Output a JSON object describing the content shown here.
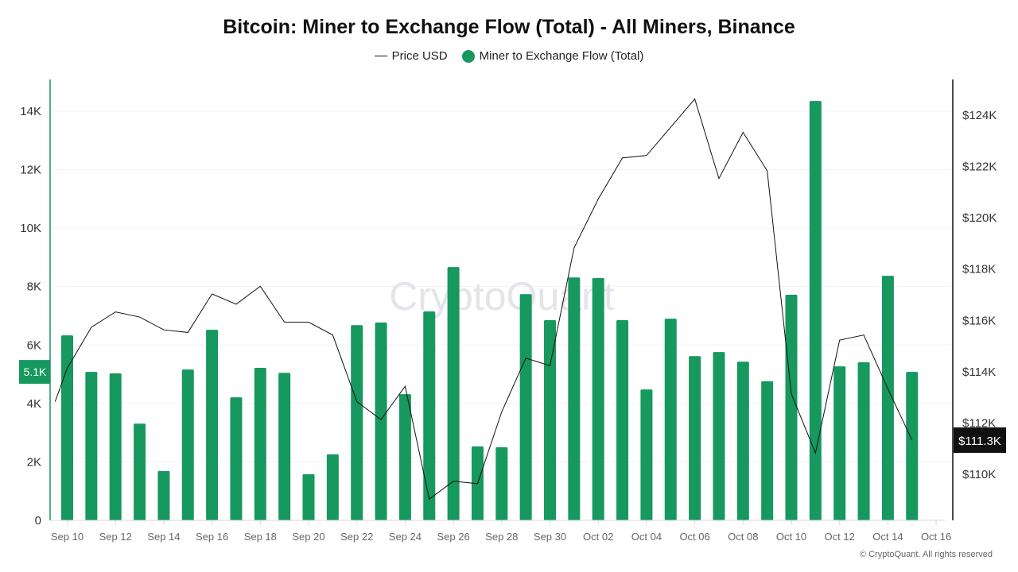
{
  "chart_data": {
    "type": "bar+line",
    "title": "Bitcoin: Miner to Exchange Flow (Total) - All Miners, Binance",
    "legend_position": "top-center",
    "grid": true,
    "watermark": "CryptoQuant",
    "copyright": "© CryptoQuant. All rights reserved",
    "categories": [
      "Sep 10",
      "Sep 11",
      "Sep 12",
      "Sep 13",
      "Sep 14",
      "Sep 15",
      "Sep 16",
      "Sep 17",
      "Sep 18",
      "Sep 19",
      "Sep 20",
      "Sep 21",
      "Sep 22",
      "Sep 23",
      "Sep 24",
      "Sep 25",
      "Sep 26",
      "Sep 27",
      "Sep 28",
      "Sep 29",
      "Sep 30",
      "Oct 01",
      "Oct 02",
      "Oct 03",
      "Oct 04",
      "Oct 05",
      "Oct 06",
      "Oct 07",
      "Oct 08",
      "Oct 09",
      "Oct 10",
      "Oct 11",
      "Oct 12",
      "Oct 13",
      "Oct 14",
      "Oct 15"
    ],
    "x_tick_labels": [
      "Sep 10",
      "Sep 12",
      "Sep 14",
      "Sep 16",
      "Sep 18",
      "Sep 20",
      "Sep 22",
      "Sep 24",
      "Sep 26",
      "Sep 28",
      "Sep 30",
      "Oct 02",
      "Oct 04",
      "Oct 06",
      "Oct 08",
      "Oct 10",
      "Oct 12",
      "Oct 14",
      "Oct 16"
    ],
    "left_axis": {
      "range": [
        0,
        15000
      ],
      "ticks": [
        0,
        2000,
        4000,
        6000,
        8000,
        10000,
        12000,
        14000
      ],
      "tick_labels": [
        "0",
        "2K",
        "4K",
        "6K",
        "8K",
        "10K",
        "12K",
        "14K"
      ],
      "color": "#16985f"
    },
    "right_axis": {
      "range": [
        108.5,
        125.3
      ],
      "ticks": [
        110,
        112,
        114,
        116,
        118,
        120,
        122,
        124
      ],
      "tick_labels": [
        "$110K",
        "$112K",
        "$114K",
        "$116K",
        "$118K",
        "$120K",
        "$122K",
        "$124K"
      ],
      "unit": "thousand USD"
    },
    "series": [
      {
        "name": "Miner to Exchange Flow (Total)",
        "type": "bar",
        "axis": "left",
        "color": "#16985f",
        "last_value_label": "5.1K",
        "values": [
          6330,
          5080,
          5030,
          3310,
          1690,
          5160,
          6520,
          4210,
          5220,
          5050,
          1580,
          2260,
          6680,
          6770,
          4320,
          7150,
          8670,
          2530,
          2500,
          7740,
          6850,
          8310,
          8290,
          6850,
          4480,
          6900,
          5620,
          5760,
          5430,
          4760,
          7720,
          14350,
          5270,
          5410,
          8370,
          5080
        ]
      },
      {
        "name": "Price USD",
        "type": "line",
        "axis": "right",
        "color": "#111111",
        "last_value_label": "$111.3K",
        "leading_value": 111.5,
        "values": [
          114.1,
          115.7,
          116.3,
          116.1,
          115.6,
          115.5,
          117.0,
          116.6,
          117.3,
          115.9,
          115.9,
          115.4,
          112.8,
          112.1,
          113.4,
          109.0,
          109.7,
          109.6,
          112.4,
          114.5,
          114.2,
          118.8,
          120.7,
          122.3,
          122.4,
          123.5,
          124.6,
          121.5,
          123.3,
          121.8,
          113.1,
          110.8,
          115.2,
          115.4,
          113.3,
          111.3
        ]
      }
    ]
  }
}
